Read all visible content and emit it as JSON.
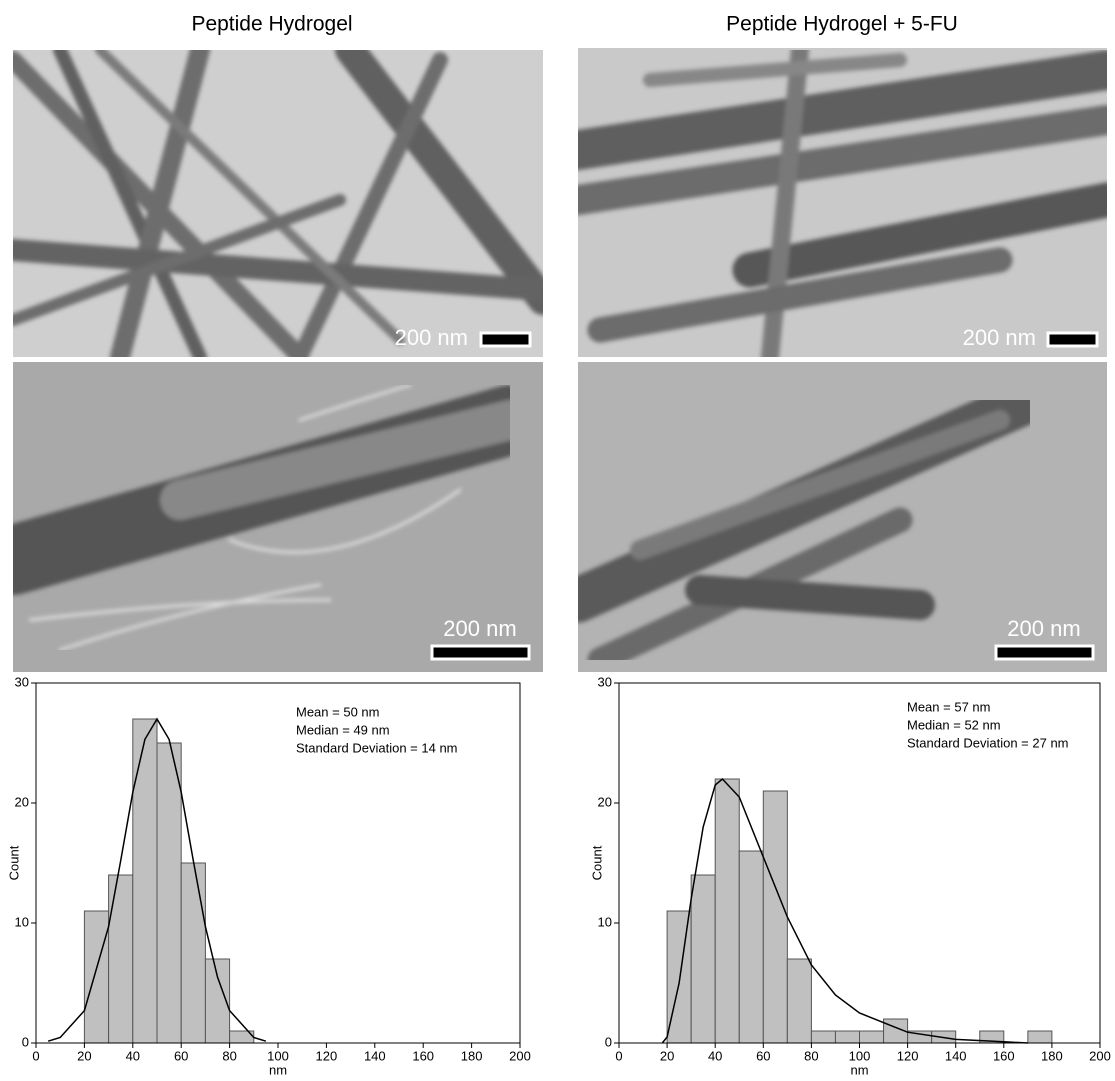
{
  "panels": [
    {
      "title": "Peptide Hydrogel",
      "scale_labels": [
        "200 nm",
        "200 nm"
      ]
    },
    {
      "title": "Peptide Hydrogel + 5-FU",
      "scale_labels": [
        "200 nm",
        "200 nm"
      ]
    }
  ],
  "chart_data": [
    {
      "type": "histogram",
      "bins": [
        20,
        30,
        40,
        50,
        60,
        70,
        80,
        90
      ],
      "values": [
        11,
        14,
        27,
        25,
        15,
        7,
        1
      ],
      "color": "#c0c0c0",
      "fit": {
        "x": [
          5,
          10,
          20,
          30,
          35,
          40,
          45,
          50,
          55,
          60,
          65,
          70,
          75,
          80,
          90,
          95
        ],
        "values": [
          0.15,
          0.46,
          2.7,
          9.7,
          15.2,
          20.9,
          25.3,
          27,
          25.3,
          20.9,
          15.2,
          9.7,
          5.5,
          2.7,
          0.46,
          0.15
        ]
      },
      "annotations": [
        "Mean = 50 nm",
        "Median = 49 nm",
        "Standard Deviation = 14 nm"
      ],
      "xlabel": "nm",
      "ylabel": "Count",
      "xlim": [
        0,
        200
      ],
      "xticks": [
        0,
        20,
        40,
        60,
        80,
        100,
        120,
        140,
        160,
        180,
        200
      ],
      "ylim": [
        0,
        30
      ],
      "yticks": [
        0,
        10,
        20,
        30
      ]
    },
    {
      "type": "histogram",
      "bins": [
        20,
        30,
        40,
        50,
        60,
        70,
        80,
        90,
        100,
        110,
        120,
        130,
        140,
        150,
        160,
        170,
        180
      ],
      "values": [
        11,
        14,
        22,
        16,
        21,
        7,
        1,
        1,
        1,
        2,
        1,
        1,
        0,
        1,
        0,
        1
      ],
      "color": "#c0c0c0",
      "fit": {
        "x": [
          18,
          20,
          25,
          30,
          35,
          40,
          43,
          50,
          60,
          70,
          80,
          90,
          100,
          120,
          140,
          160,
          170
        ],
        "values": [
          0,
          0.5,
          5,
          12,
          18,
          21.5,
          22,
          20.5,
          15.5,
          10.5,
          6.5,
          4,
          2.5,
          0.9,
          0.3,
          0.1,
          0
        ]
      },
      "annotations": [
        "Mean = 57 nm",
        "Median = 52 nm",
        "Standard Deviation = 27 nm"
      ],
      "xlabel": "nm",
      "ylabel": "Count",
      "xlim": [
        0,
        200
      ],
      "xticks": [
        0,
        20,
        40,
        60,
        80,
        100,
        120,
        140,
        160,
        180,
        200
      ],
      "ylim": [
        0,
        30
      ],
      "yticks": [
        0,
        10,
        20,
        30
      ]
    }
  ]
}
